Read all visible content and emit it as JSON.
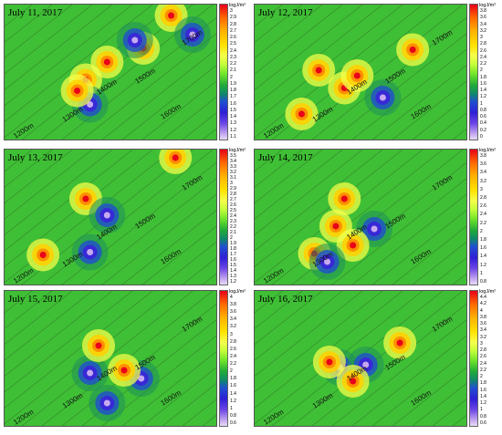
{
  "unit_label": "logJ/m²",
  "chart_data": [
    {
      "type": "heatmap",
      "title": "July 11, 2017",
      "contour_labels": [
        "1300m",
        "1400m",
        "1500m",
        "1600m",
        "1700m",
        "1200m"
      ],
      "colorbar_ticks": [
        "3",
        "2.9",
        "2.8",
        "2.7",
        "2.6",
        "2.5",
        "2.4",
        "2.3",
        "2.2",
        "2.1",
        "2",
        "1.9",
        "1.8",
        "1.7",
        "1.6",
        "1.5",
        "1.4",
        "1.3",
        "1.2",
        "1.1"
      ],
      "hotspots": [
        {
          "x": 0.38,
          "y": 0.55,
          "level": "high"
        },
        {
          "x": 0.48,
          "y": 0.42,
          "level": "high"
        },
        {
          "x": 0.65,
          "y": 0.32,
          "level": "high"
        },
        {
          "x": 0.78,
          "y": 0.08,
          "level": "high"
        },
        {
          "x": 0.61,
          "y": 0.26,
          "level": "low"
        },
        {
          "x": 0.88,
          "y": 0.22,
          "level": "low"
        },
        {
          "x": 0.4,
          "y": 0.73,
          "level": "low"
        },
        {
          "x": 0.34,
          "y": 0.63,
          "level": "high"
        }
      ]
    },
    {
      "type": "heatmap",
      "title": "July 12, 2017",
      "contour_labels": [
        "1300m",
        "1400m",
        "1500m",
        "1600m",
        "1700m",
        "1200m"
      ],
      "colorbar_ticks": [
        "3.8",
        "3.6",
        "3.4",
        "3.2",
        "3",
        "2.8",
        "2.6",
        "2.4",
        "2.2",
        "2",
        "1.8",
        "1.6",
        "1.4",
        "1.2",
        "1",
        "0.8",
        "0.6",
        "0.4",
        "0.2",
        "0"
      ],
      "hotspots": [
        {
          "x": 0.74,
          "y": 0.33,
          "level": "high"
        },
        {
          "x": 0.3,
          "y": 0.48,
          "level": "high"
        },
        {
          "x": 0.22,
          "y": 0.8,
          "level": "high"
        },
        {
          "x": 0.42,
          "y": 0.61,
          "level": "high"
        },
        {
          "x": 0.6,
          "y": 0.68,
          "level": "low"
        },
        {
          "x": 0.48,
          "y": 0.52,
          "level": "high"
        }
      ]
    },
    {
      "type": "heatmap",
      "title": "July 13, 2017",
      "contour_labels": [
        "1300m",
        "1400m",
        "1500m",
        "1600m",
        "1700m",
        "1200m"
      ],
      "colorbar_ticks": [
        "3.5",
        "3.4",
        "3.3",
        "3.2",
        "3.1",
        "3",
        "2.9",
        "2.8",
        "2.7",
        "2.6",
        "2.5",
        "2.4",
        "2.3",
        "2.2",
        "2.1",
        "2",
        "1.9",
        "1.8",
        "1.7",
        "1.6",
        "1.5",
        "1.4",
        "1.3",
        "1.2"
      ],
      "hotspots": [
        {
          "x": 0.18,
          "y": 0.77,
          "level": "high"
        },
        {
          "x": 0.4,
          "y": 0.75,
          "level": "low"
        },
        {
          "x": 0.38,
          "y": 0.36,
          "level": "high"
        },
        {
          "x": 0.48,
          "y": 0.48,
          "level": "low"
        },
        {
          "x": 0.8,
          "y": 0.06,
          "level": "high"
        }
      ]
    },
    {
      "type": "heatmap",
      "title": "July 14, 2017",
      "contour_labels": [
        "1300m",
        "1400m",
        "1500m",
        "1600m",
        "1700m",
        "1200m"
      ],
      "colorbar_ticks": [
        "3.8",
        "3.6",
        "3.4",
        "3.2",
        "3",
        "2.8",
        "2.6",
        "2.4",
        "2.2",
        "2",
        "1.8",
        "1.6",
        "1.4",
        "1.2",
        "1",
        "0.8"
      ],
      "hotspots": [
        {
          "x": 0.38,
          "y": 0.56,
          "level": "high"
        },
        {
          "x": 0.56,
          "y": 0.58,
          "level": "low"
        },
        {
          "x": 0.46,
          "y": 0.7,
          "level": "high"
        },
        {
          "x": 0.28,
          "y": 0.76,
          "level": "high"
        },
        {
          "x": 0.34,
          "y": 0.82,
          "level": "low"
        },
        {
          "x": 0.42,
          "y": 0.36,
          "level": "high"
        }
      ]
    },
    {
      "type": "heatmap",
      "title": "July 15, 2017",
      "contour_labels": [
        "1300m",
        "1400m",
        "1500m",
        "1600m",
        "1700m",
        "1200m"
      ],
      "colorbar_ticks": [
        "4",
        "3.8",
        "3.6",
        "3.4",
        "3.2",
        "3",
        "2.8",
        "2.6",
        "2.4",
        "2.2",
        "2",
        "1.8",
        "1.6",
        "1.4",
        "1.2",
        "1",
        "0.8",
        "0.6"
      ],
      "hotspots": [
        {
          "x": 0.48,
          "y": 0.82,
          "level": "low"
        },
        {
          "x": 0.64,
          "y": 0.64,
          "level": "low"
        },
        {
          "x": 0.4,
          "y": 0.6,
          "level": "low"
        },
        {
          "x": 0.44,
          "y": 0.4,
          "level": "high"
        },
        {
          "x": 0.56,
          "y": 0.58,
          "level": "high"
        }
      ]
    },
    {
      "type": "heatmap",
      "title": "July 16, 2017",
      "contour_labels": [
        "1300m",
        "1400m",
        "1500m",
        "1600m",
        "1700m",
        "1200m"
      ],
      "colorbar_ticks": [
        "4.4",
        "4.2",
        "4",
        "3.8",
        "3.6",
        "3.4",
        "3.2",
        "3",
        "2.8",
        "2.6",
        "2.4",
        "2.2",
        "2",
        "1.8",
        "1.6",
        "1.4",
        "1.2",
        "1",
        "0.8",
        "0.6"
      ],
      "hotspots": [
        {
          "x": 0.68,
          "y": 0.38,
          "level": "high"
        },
        {
          "x": 0.4,
          "y": 0.56,
          "level": "low"
        },
        {
          "x": 0.52,
          "y": 0.54,
          "level": "low"
        },
        {
          "x": 0.46,
          "y": 0.66,
          "level": "high"
        },
        {
          "x": 0.35,
          "y": 0.52,
          "level": "high"
        }
      ]
    }
  ]
}
